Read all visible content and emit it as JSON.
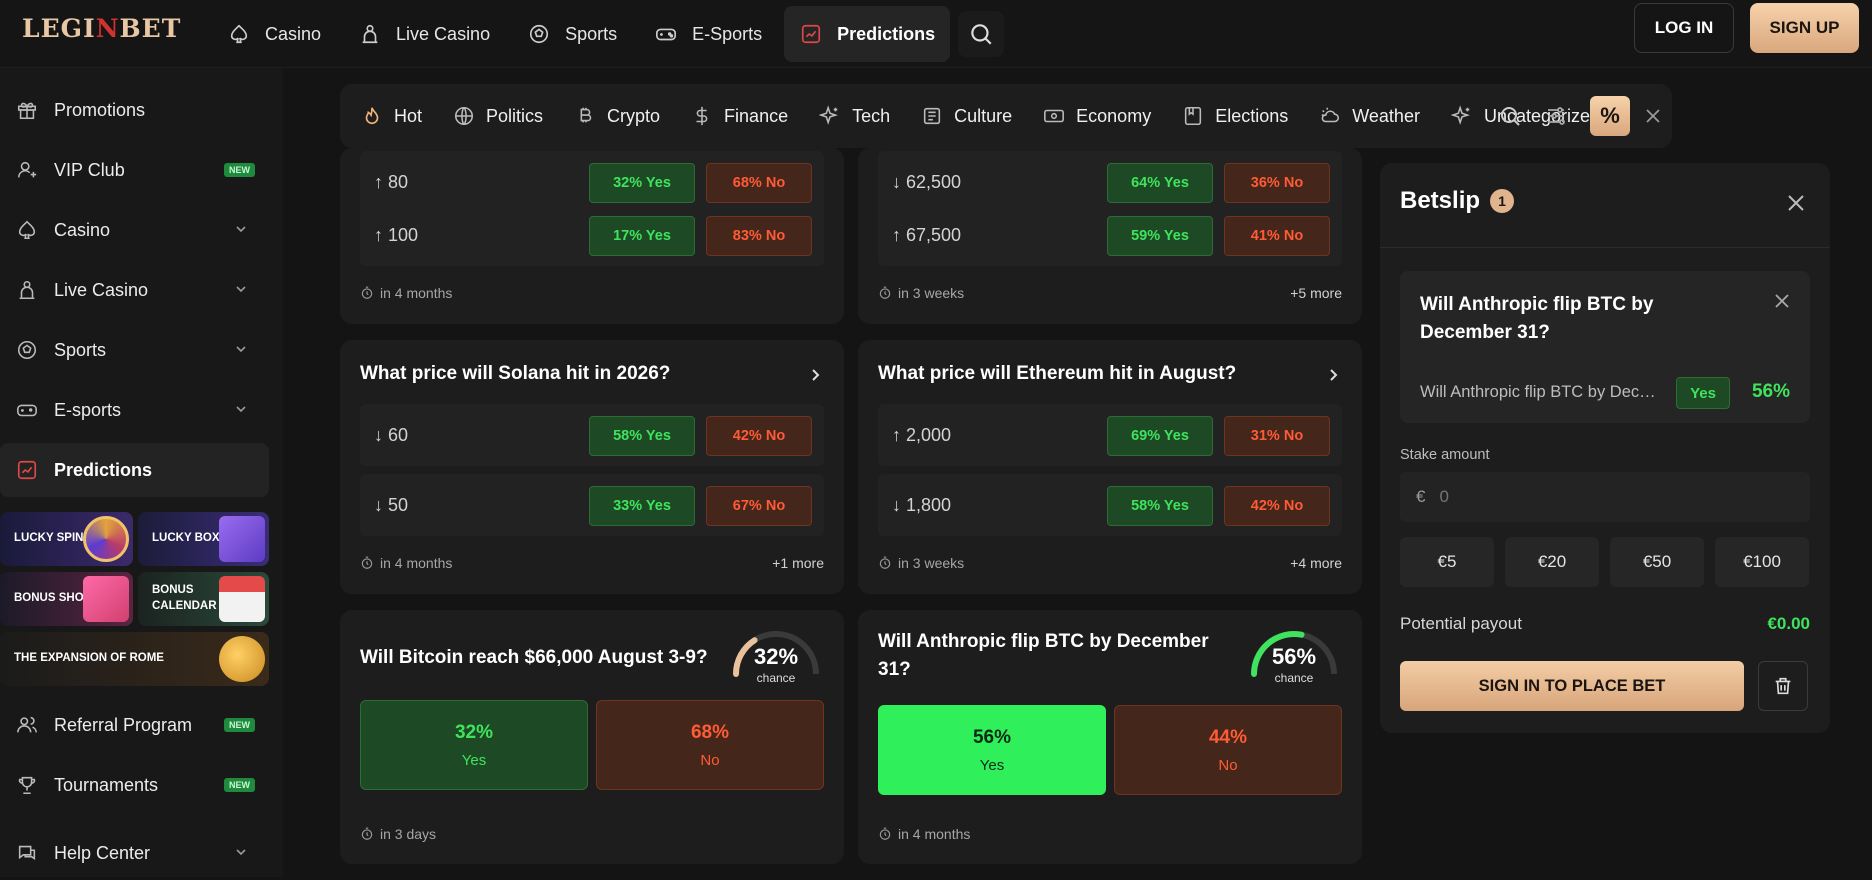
{
  "brand": {
    "logo_a": "LEGI",
    "logo_b": "N",
    "logo_c": "BET"
  },
  "topnav": [
    {
      "label": "Casino",
      "icon": "spade-icon"
    },
    {
      "label": "Live Casino",
      "icon": "dealer-icon"
    },
    {
      "label": "Sports",
      "icon": "soccer-ball-icon"
    },
    {
      "label": "E-Sports",
      "icon": "gamepad-icon"
    },
    {
      "label": "Predictions",
      "icon": "trend-chart-icon",
      "active": true
    }
  ],
  "auth": {
    "login": "LOG IN",
    "signup": "SIGN UP"
  },
  "sidebar": {
    "items": [
      {
        "label": "Promotions",
        "icon": "gift-icon"
      },
      {
        "label": "VIP Club",
        "icon": "vip-user-icon",
        "badge": "NEW"
      },
      {
        "label": "Casino",
        "icon": "spade-icon"
      },
      {
        "label": "Live Casino",
        "icon": "dealer-icon"
      },
      {
        "label": "Sports",
        "icon": "soccer-ball-icon"
      },
      {
        "label": "E-sports",
        "icon": "gamepad-icon"
      },
      {
        "label": "Predictions",
        "icon": "trend-chart-icon"
      }
    ],
    "promos": {
      "lucky_spin": "LUCKY SPIN",
      "lucky_box": "LUCKY BOX",
      "bonus_shop": "BONUS SHOP",
      "bonus_calendar_1": "BONUS",
      "bonus_calendar_2": "CALENDAR",
      "expansion": "THE EXPANSION OF ROME"
    },
    "bottom": [
      {
        "label": "Referral Program",
        "badge": "NEW"
      },
      {
        "label": "Tournaments",
        "badge": "NEW"
      },
      {
        "label": "Help Center"
      }
    ]
  },
  "categories": [
    {
      "label": "Hot",
      "icon": "flame-icon"
    },
    {
      "label": "Politics",
      "icon": "globe-icon"
    },
    {
      "label": "Crypto",
      "icon": "bitcoin-icon"
    },
    {
      "label": "Finance",
      "icon": "dollar-icon"
    },
    {
      "label": "Tech",
      "icon": "sparkle-icon"
    },
    {
      "label": "Culture",
      "icon": "newspaper-icon"
    },
    {
      "label": "Economy",
      "icon": "banknote-icon"
    },
    {
      "label": "Elections",
      "icon": "ballot-icon"
    },
    {
      "label": "Weather",
      "icon": "weather-icon"
    },
    {
      "label": "Uncategorized",
      "icon": "sparkle-icon"
    }
  ],
  "cards": {
    "c1": {
      "rows": [
        {
          "label": "↑ 80",
          "yes": "32% Yes",
          "no": "68% No"
        },
        {
          "label": "↑ 100",
          "yes": "17% Yes",
          "no": "83% No"
        }
      ],
      "time": "in 4 months"
    },
    "c2": {
      "rows": [
        {
          "label": "↓ 62,500",
          "yes": "64% Yes",
          "no": "36% No"
        },
        {
          "label": "↑ 67,500",
          "yes": "59% Yes",
          "no": "41% No"
        }
      ],
      "time": "in 3 weeks",
      "more": "+5 more"
    },
    "c3": {
      "title": "What price will Solana hit in 2026?",
      "rows": [
        {
          "label": "↓ 60",
          "yes": "58% Yes",
          "no": "42% No"
        },
        {
          "label": "↓ 50",
          "yes": "33% Yes",
          "no": "67% No"
        }
      ],
      "time": "in 4 months",
      "more": "+1 more"
    },
    "c4": {
      "title": "What price will Ethereum hit in August?",
      "rows": [
        {
          "label": "↑ 2,000",
          "yes": "69% Yes",
          "no": "31% No"
        },
        {
          "label": "↓ 1,800",
          "yes": "58% Yes",
          "no": "42% No"
        }
      ],
      "time": "in 3 weeks",
      "more": "+4 more"
    },
    "c5": {
      "title": "Will Bitcoin reach $66,000 August 3-9?",
      "chance": "32%",
      "chance_label": "chance",
      "chance_value": 0.32,
      "yes_pct": "32%",
      "yes": "Yes",
      "no_pct": "68%",
      "no": "No",
      "time": "in 3 days"
    },
    "c6": {
      "title": "Will Anthropic flip BTC by December 31?",
      "chance": "56%",
      "chance_label": "chance",
      "chance_value": 0.56,
      "yes_pct": "56%",
      "yes": "Yes",
      "no_pct": "44%",
      "no": "No",
      "time": "in 4 months"
    }
  },
  "betslip": {
    "title": "Betslip",
    "count": "1",
    "selection": {
      "title": "Will Anthropic flip BTC by December 31?",
      "market": "Will Anthropic flip BTC by December 31?",
      "tag": "Yes",
      "pct": "56%"
    },
    "stake_label": "Stake amount",
    "currency": "€",
    "stake_placeholder": "0",
    "quick": [
      "€5",
      "€20",
      "€50",
      "€100"
    ],
    "payout_label": "Potential payout",
    "payout_value": "€0.00",
    "place_label": "SIGN IN TO PLACE BET"
  },
  "colors": {
    "accent": "#e0b58e",
    "green": "#3fe35d",
    "red": "#ff5b36"
  }
}
